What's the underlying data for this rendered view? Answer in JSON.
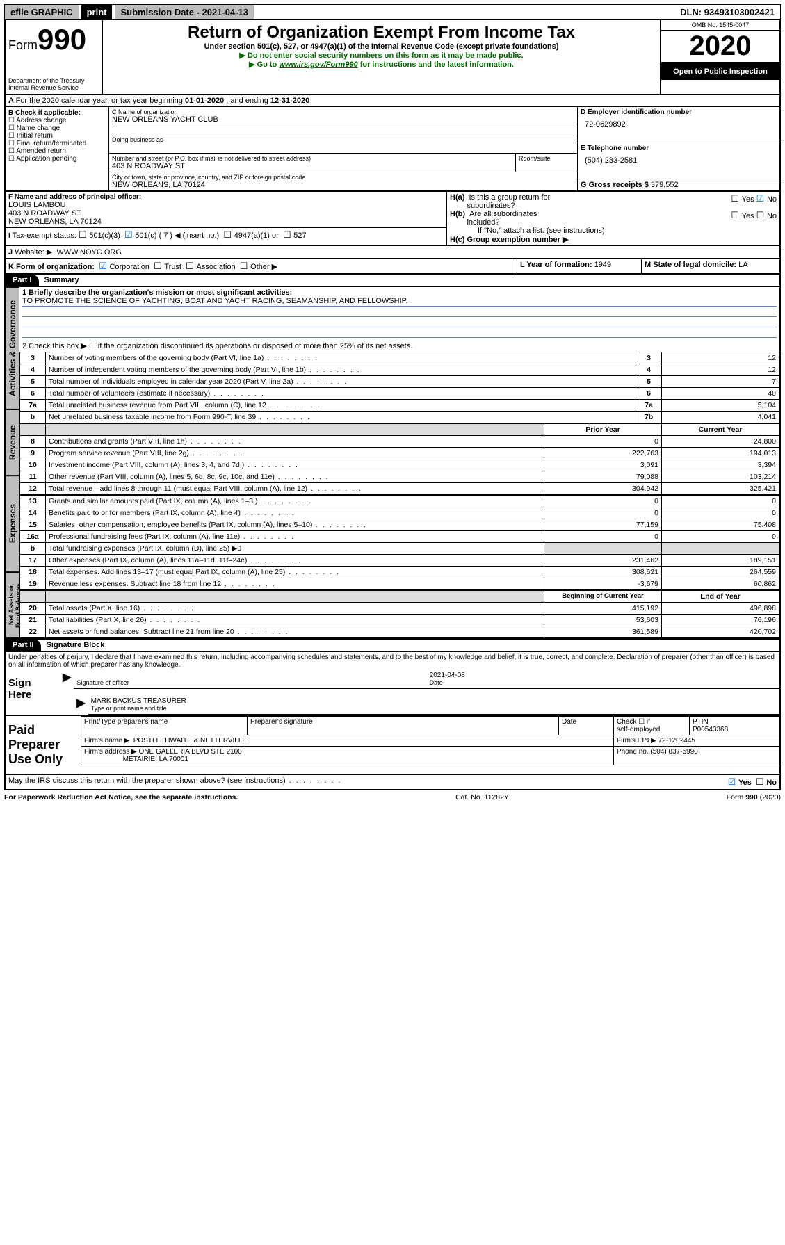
{
  "topbar": {
    "efile": "efile GRAPHIC",
    "print": "print",
    "sub_label": "Submission Date - ",
    "sub_date": "2021-04-13",
    "dln_label": "DLN: ",
    "dln": "93493103002421"
  },
  "hdr": {
    "form_prefix": "Form",
    "form_no": "990",
    "dept": "Department of the Treasury",
    "irs": "Internal Revenue Service",
    "title": "Return of Organization Exempt From Income Tax",
    "sub1": "Under section 501(c), 527, or 4947(a)(1) of the Internal Revenue Code (except private foundations)",
    "sub2": "▶ Do not enter social security numbers on this form as it may be made public.",
    "sub3_a": "▶ Go to ",
    "sub3_link": "www.irs.gov/Form990",
    "sub3_b": " for instructions and the latest information.",
    "omb": "OMB No. 1545-0047",
    "year": "2020",
    "open": "Open to Public Inspection"
  },
  "a": {
    "text_a": "For the 2020 calendar year, or tax year beginning ",
    "begin": "01-01-2020",
    "text_b": "  , and ending ",
    "end": "12-31-2020"
  },
  "b": {
    "label": "B Check if applicable:",
    "items": [
      "Address change",
      "Name change",
      "Initial return",
      "Final return/terminated",
      "Amended return",
      "Application pending"
    ]
  },
  "c": {
    "name_lbl": "C Name of organization",
    "name": "NEW ORLEANS YACHT CLUB",
    "dba_lbl": "Doing business as",
    "addr_lbl": "Number and street (or P.O. box if mail is not delivered to street address)",
    "room_lbl": "Room/suite",
    "addr": "403 N ROADWAY ST",
    "city_lbl": "City or town, state or province, country, and ZIP or foreign postal code",
    "city": "NEW ORLEANS, LA  70124"
  },
  "d": {
    "lbl": "D Employer identification number",
    "val": "72-0629892"
  },
  "e": {
    "lbl": "E Telephone number",
    "val": "(504) 283-2581"
  },
  "g": {
    "lbl": "G Gross receipts $ ",
    "val": "379,552"
  },
  "f": {
    "lbl": "F  Name and address of principal officer:",
    "name": "LOUIS LAMBOU",
    "addr1": "403 N ROADWAY ST",
    "addr2": "NEW ORLEANS, LA  70124"
  },
  "h": {
    "a_lbl": "H(a)  Is this a group return for subordinates?",
    "b_lbl": "H(b)  Are all subordinates included?",
    "b_note": "If \"No,\" attach a list. (see instructions)",
    "c_lbl": "H(c)  Group exemption number ▶",
    "yes": "Yes",
    "no": "No"
  },
  "i": {
    "lbl": "Tax-exempt status:",
    "o1": "501(c)(3)",
    "o2": "501(c) ( 7 ) ◀ (insert no.)",
    "o3": "4947(a)(1) or",
    "o4": "527"
  },
  "j": {
    "lbl": "Website: ▶",
    "val": "WWW.NOYC.ORG"
  },
  "k": {
    "lbl": "K Form of organization:",
    "o1": "Corporation",
    "o2": "Trust",
    "o3": "Association",
    "o4": "Other ▶"
  },
  "l": {
    "lbl": "L Year of formation: ",
    "val": "1949"
  },
  "m": {
    "lbl": "M State of legal domicile: ",
    "val": "LA"
  },
  "part1": {
    "hdr": "Part I",
    "title": "Summary"
  },
  "summary": {
    "l1_lbl": "1  Briefly describe the organization's mission or most significant activities:",
    "l1_val": "TO PROMOTE THE SCIENCE OF YACHTING, BOAT AND YACHT RACING, SEAMANSHIP, AND FELLOWSHIP.",
    "l2": "2   Check this box ▶ ☐  if the organization discontinued its operations or disposed of more than 25% of its net assets.",
    "rows_gov": [
      {
        "n": "3",
        "t": "Number of voting members of the governing body (Part VI, line 1a)",
        "r": "3",
        "v": "12"
      },
      {
        "n": "4",
        "t": "Number of independent voting members of the governing body (Part VI, line 1b)",
        "r": "4",
        "v": "12"
      },
      {
        "n": "5",
        "t": "Total number of individuals employed in calendar year 2020 (Part V, line 2a)",
        "r": "5",
        "v": "7"
      },
      {
        "n": "6",
        "t": "Total number of volunteers (estimate if necessary)",
        "r": "6",
        "v": "40"
      },
      {
        "n": "7a",
        "t": "Total unrelated business revenue from Part VIII, column (C), line 12",
        "r": "7a",
        "v": "5,104"
      },
      {
        "n": "b",
        "t": "Net unrelated business taxable income from Form 990-T, line 39",
        "r": "7b",
        "v": "4,041"
      }
    ],
    "col_prior": "Prior Year",
    "col_curr": "Current Year",
    "rev": [
      {
        "n": "8",
        "t": "Contributions and grants (Part VIII, line 1h)",
        "p": "0",
        "c": "24,800"
      },
      {
        "n": "9",
        "t": "Program service revenue (Part VIII, line 2g)",
        "p": "222,763",
        "c": "194,013"
      },
      {
        "n": "10",
        "t": "Investment income (Part VIII, column (A), lines 3, 4, and 7d )",
        "p": "3,091",
        "c": "3,394"
      },
      {
        "n": "11",
        "t": "Other revenue (Part VIII, column (A), lines 5, 6d, 8c, 9c, 10c, and 11e)",
        "p": "79,088",
        "c": "103,214"
      },
      {
        "n": "12",
        "t": "Total revenue—add lines 8 through 11 (must equal Part VIII, column (A), line 12)",
        "p": "304,942",
        "c": "325,421"
      }
    ],
    "exp": [
      {
        "n": "13",
        "t": "Grants and similar amounts paid (Part IX, column (A), lines 1–3 )",
        "p": "0",
        "c": "0"
      },
      {
        "n": "14",
        "t": "Benefits paid to or for members (Part IX, column (A), line 4)",
        "p": "0",
        "c": "0"
      },
      {
        "n": "15",
        "t": "Salaries, other compensation, employee benefits (Part IX, column (A), lines 5–10)",
        "p": "77,159",
        "c": "75,408"
      },
      {
        "n": "16a",
        "t": "Professional fundraising fees (Part IX, column (A), line 11e)",
        "p": "0",
        "c": "0"
      },
      {
        "n": "b",
        "t": "Total fundraising expenses (Part IX, column (D), line 25) ▶0",
        "p": "",
        "c": ""
      },
      {
        "n": "17",
        "t": "Other expenses (Part IX, column (A), lines 11a–11d, 11f–24e)",
        "p": "231,462",
        "c": "189,151"
      },
      {
        "n": "18",
        "t": "Total expenses. Add lines 13–17 (must equal Part IX, column (A), line 25)",
        "p": "308,621",
        "c": "264,559"
      },
      {
        "n": "19",
        "t": "Revenue less expenses. Subtract line 18 from line 12",
        "p": "-3,679",
        "c": "60,862"
      }
    ],
    "col_begin": "Beginning of Current Year",
    "col_end": "End of Year",
    "na": [
      {
        "n": "20",
        "t": "Total assets (Part X, line 16)",
        "p": "415,192",
        "c": "496,898"
      },
      {
        "n": "21",
        "t": "Total liabilities (Part X, line 26)",
        "p": "53,603",
        "c": "76,196"
      },
      {
        "n": "22",
        "t": "Net assets or fund balances. Subtract line 21 from line 20",
        "p": "361,589",
        "c": "420,702"
      }
    ]
  },
  "tabs": {
    "gov": "Activities & Governance",
    "rev": "Revenue",
    "exp": "Expenses",
    "na": "Net Assets or Fund Balances"
  },
  "part2": {
    "hdr": "Part II",
    "title": "Signature Block",
    "decl": "Under penalties of perjury, I declare that I have examined this return, including accompanying schedules and statements, and to the best of my knowledge and belief, it is true, correct, and complete. Declaration of preparer (other than officer) is based on all information of which preparer has any knowledge."
  },
  "sign": {
    "here": "Sign Here",
    "sig_lbl": "Signature of officer",
    "date": "2021-04-08",
    "date_lbl": "Date",
    "name": "MARK BACKUS TREASURER",
    "name_lbl": "Type or print name and title"
  },
  "paid": {
    "title": "Paid Preparer Use Only",
    "c1": "Print/Type preparer's name",
    "c2": "Preparer's signature",
    "c3": "Date",
    "c4a": "Check ☐ if",
    "c4b": "self-employed",
    "c5": "PTIN",
    "ptin": "P00543368",
    "firm_lbl": "Firm's name   ▶",
    "firm": "POSTLETHWAITE & NETTERVILLE",
    "ein_lbl": "Firm's EIN ▶",
    "ein": "72-1202445",
    "addr_lbl": "Firm's address ▶",
    "addr1": "ONE GALLERIA BLVD STE 2100",
    "addr2": "METAIRIE, LA  70001",
    "ph_lbl": "Phone no. ",
    "ph": "(504) 837-5990",
    "q": "May the IRS discuss this return with the preparer shown above? (see instructions)"
  },
  "foot": {
    "l": "For Paperwork Reduction Act Notice, see the separate instructions.",
    "m": "Cat. No. 11282Y",
    "r": "Form 990 (2020)"
  },
  "colors": {
    "link": "#006600",
    "gray": "#bdbdbd",
    "line": "#6080c0"
  }
}
